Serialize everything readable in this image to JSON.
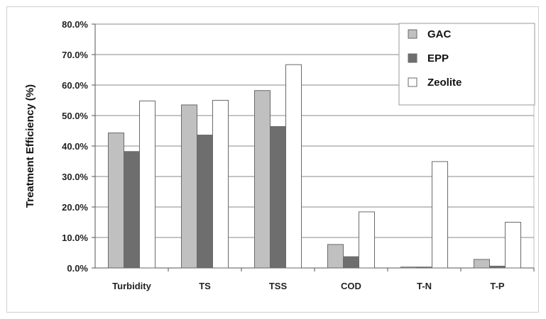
{
  "chart_data": {
    "type": "bar",
    "title": "",
    "xlabel": "",
    "ylabel": "Treatment Efficiency (%)",
    "ylim": [
      0,
      80
    ],
    "ytick_step": 10,
    "categories": [
      "Turbidity",
      "TS",
      "TSS",
      "COD",
      "T-N",
      "T-P"
    ],
    "series": [
      {
        "name": "GAC",
        "color": "#c0c0c0",
        "values": [
          44.3,
          53.5,
          58.2,
          7.7,
          0.3,
          2.8
        ]
      },
      {
        "name": "EPP",
        "color": "#6e6e6e",
        "values": [
          38.2,
          43.6,
          46.4,
          3.7,
          0.3,
          0.6
        ]
      },
      {
        "name": "Zeolite",
        "color": "#ffffff",
        "values": [
          54.8,
          55.0,
          66.7,
          18.4,
          34.9,
          15.0
        ]
      }
    ],
    "grid": "horizontal",
    "legend": "top-right"
  }
}
